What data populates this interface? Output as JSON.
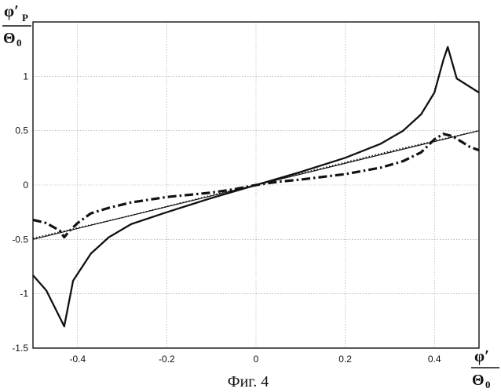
{
  "chart_data": {
    "type": "line",
    "caption": "Фиг. 4",
    "ylabel": {
      "numerator": "φ′",
      "subscript": "P",
      "denominator": "Θ",
      "den_subscript": "0"
    },
    "xlabel": {
      "numerator": "φ′",
      "denominator": "Θ",
      "den_subscript": "0"
    },
    "xlim": [
      -0.5,
      0.5
    ],
    "ylim": [
      -1.5,
      1.5
    ],
    "xticks": [
      -0.4,
      -0.2,
      0,
      0.2,
      0.4
    ],
    "xtick_labels": [
      "-0.4",
      "-0.2",
      "0",
      "0.2",
      "0.4"
    ],
    "yticks": [
      -1.5,
      -1,
      -0.5,
      0,
      0.5,
      1,
      1.5
    ],
    "ytick_labels": [
      "-1.5",
      "-1",
      "-0.5",
      "0",
      "0.5",
      "1",
      ""
    ],
    "grid": true,
    "series": [
      {
        "style": "solid-thick",
        "x": [
          -0.5,
          -0.47,
          -0.43,
          -0.41,
          -0.37,
          -0.33,
          -0.28,
          -0.2,
          -0.1,
          0,
          0.1,
          0.2,
          0.28,
          0.33,
          0.37,
          0.4,
          0.42,
          0.43,
          0.45,
          0.5
        ],
        "y": [
          -0.83,
          -0.97,
          -1.3,
          -0.88,
          -0.63,
          -0.48,
          -0.36,
          -0.25,
          -0.12,
          0,
          0.12,
          0.25,
          0.38,
          0.5,
          0.65,
          0.85,
          1.15,
          1.27,
          0.98,
          0.85
        ]
      },
      {
        "style": "solid-thin",
        "x": [
          -0.5,
          0.5
        ],
        "y": [
          -0.5,
          0.5
        ]
      },
      {
        "style": "dotted",
        "x": [
          -0.5,
          -0.3,
          -0.1,
          0,
          0.1,
          0.3,
          0.5
        ],
        "y": [
          -0.49,
          -0.3,
          -0.095,
          0,
          0.105,
          0.31,
          0.5
        ]
      },
      {
        "style": "dash-dot",
        "x": [
          -0.5,
          -0.47,
          -0.44,
          -0.43,
          -0.42,
          -0.4,
          -0.37,
          -0.33,
          -0.28,
          -0.2,
          -0.1,
          -0.05,
          0,
          0.05,
          0.1,
          0.2,
          0.28,
          0.33,
          0.37,
          0.4,
          0.42,
          0.44,
          0.46,
          0.48,
          0.5
        ],
        "y": [
          -0.32,
          -0.35,
          -0.42,
          -0.48,
          -0.43,
          -0.35,
          -0.26,
          -0.21,
          -0.16,
          -0.11,
          -0.07,
          -0.04,
          0,
          0.03,
          0.05,
          0.1,
          0.16,
          0.22,
          0.3,
          0.42,
          0.47,
          0.45,
          0.4,
          0.35,
          0.32
        ]
      }
    ]
  }
}
